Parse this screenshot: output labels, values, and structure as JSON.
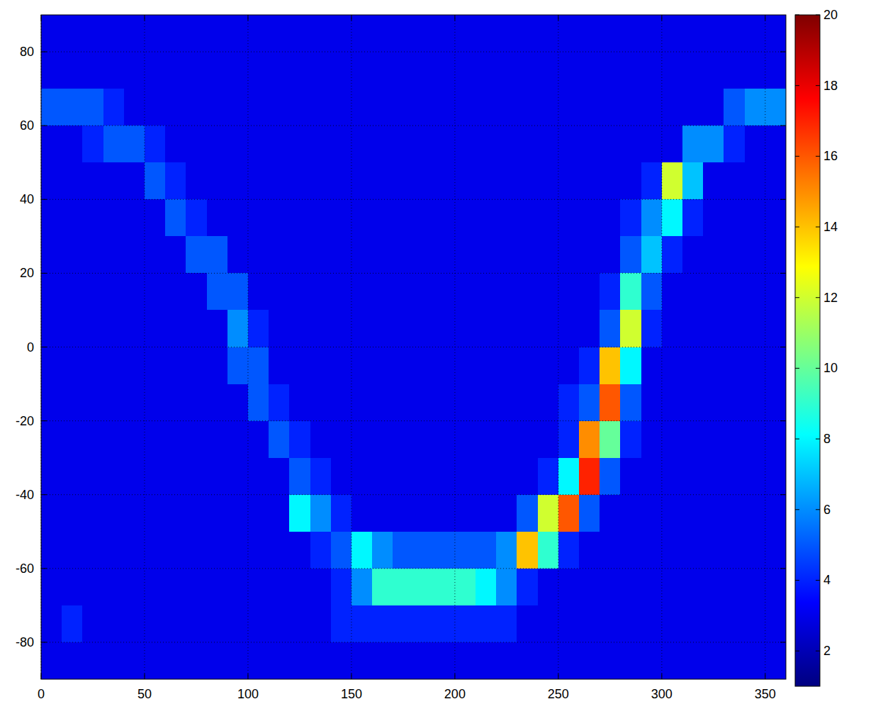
{
  "chart_data": {
    "type": "heatmap",
    "x": [
      5,
      15,
      25,
      35,
      45,
      55,
      65,
      75,
      85,
      95,
      105,
      115,
      125,
      135,
      145,
      155,
      165,
      175,
      185,
      195,
      205,
      215,
      225,
      235,
      245,
      255,
      265,
      275,
      285,
      295,
      305,
      315,
      325,
      335,
      345,
      355
    ],
    "y": [
      85,
      75,
      65,
      55,
      45,
      35,
      25,
      15,
      5,
      -5,
      -15,
      -25,
      -35,
      -45,
      -55,
      -65,
      -75,
      -85
    ],
    "values": [
      [
        3,
        3,
        3,
        3,
        3,
        3,
        3,
        3,
        3,
        3,
        3,
        3,
        3,
        3,
        3,
        3,
        3,
        3,
        3,
        3,
        3,
        3,
        3,
        3,
        3,
        3,
        3,
        3,
        3,
        3,
        3,
        3,
        3,
        3,
        3,
        3
      ],
      [
        3,
        3,
        3,
        3,
        3,
        3,
        3,
        3,
        3,
        3,
        3,
        3,
        3,
        3,
        3,
        3,
        3,
        3,
        3,
        3,
        3,
        3,
        3,
        3,
        3,
        3,
        3,
        3,
        3,
        3,
        3,
        3,
        3,
        3,
        3,
        3
      ],
      [
        5,
        5,
        5,
        4,
        3,
        3,
        3,
        3,
        3,
        3,
        3,
        3,
        3,
        3,
        3,
        3,
        3,
        3,
        3,
        3,
        3,
        3,
        3,
        3,
        3,
        3,
        3,
        3,
        3,
        3,
        3,
        3,
        3,
        5,
        6,
        6
      ],
      [
        3,
        3,
        4,
        5,
        5,
        4,
        3,
        3,
        3,
        3,
        3,
        3,
        3,
        3,
        3,
        3,
        3,
        3,
        3,
        3,
        3,
        3,
        3,
        3,
        3,
        3,
        3,
        3,
        3,
        3,
        3,
        6,
        6,
        4,
        3,
        3
      ],
      [
        3,
        3,
        3,
        3,
        3,
        5,
        4,
        3,
        3,
        3,
        3,
        3,
        3,
        3,
        3,
        3,
        3,
        3,
        3,
        3,
        3,
        3,
        3,
        3,
        3,
        3,
        3,
        3,
        3,
        4,
        12,
        7,
        3,
        3,
        3,
        3
      ],
      [
        3,
        3,
        3,
        3,
        3,
        3,
        5,
        4,
        3,
        3,
        3,
        3,
        3,
        3,
        3,
        3,
        3,
        3,
        3,
        3,
        3,
        3,
        3,
        3,
        3,
        3,
        3,
        3,
        4,
        6,
        8,
        4,
        3,
        3,
        3,
        3
      ],
      [
        3,
        3,
        3,
        3,
        3,
        3,
        3,
        5,
        5,
        3,
        3,
        3,
        3,
        3,
        3,
        3,
        3,
        3,
        3,
        3,
        3,
        3,
        3,
        3,
        3,
        3,
        3,
        3,
        5,
        7,
        4,
        3,
        3,
        3,
        3,
        3
      ],
      [
        3,
        3,
        3,
        3,
        3,
        3,
        3,
        3,
        5,
        5,
        3,
        3,
        3,
        3,
        3,
        3,
        3,
        3,
        3,
        3,
        3,
        3,
        3,
        3,
        3,
        3,
        3,
        4,
        9,
        5,
        3,
        3,
        3,
        3,
        3,
        3
      ],
      [
        3,
        3,
        3,
        3,
        3,
        3,
        3,
        3,
        3,
        6,
        4,
        3,
        3,
        3,
        3,
        3,
        3,
        3,
        3,
        3,
        3,
        3,
        3,
        3,
        3,
        3,
        3,
        5,
        12,
        4,
        3,
        3,
        3,
        3,
        3,
        3
      ],
      [
        3,
        3,
        3,
        3,
        3,
        3,
        3,
        3,
        3,
        5,
        5,
        3,
        3,
        3,
        3,
        3,
        3,
        3,
        3,
        3,
        3,
        3,
        3,
        3,
        3,
        3,
        4,
        14,
        8,
        3,
        3,
        3,
        3,
        3,
        3,
        3
      ],
      [
        3,
        3,
        3,
        3,
        3,
        3,
        3,
        3,
        3,
        3,
        5,
        4,
        3,
        3,
        3,
        3,
        3,
        3,
        3,
        3,
        3,
        3,
        3,
        3,
        3,
        4,
        5,
        16,
        5,
        3,
        3,
        3,
        3,
        3,
        3,
        3
      ],
      [
        3,
        3,
        3,
        3,
        3,
        3,
        3,
        3,
        3,
        3,
        3,
        5,
        4,
        3,
        3,
        3,
        3,
        3,
        3,
        3,
        3,
        3,
        3,
        3,
        3,
        4,
        15,
        10,
        4,
        3,
        3,
        3,
        3,
        3,
        3,
        3
      ],
      [
        3,
        3,
        3,
        3,
        3,
        3,
        3,
        3,
        3,
        3,
        3,
        3,
        5,
        4,
        3,
        3,
        3,
        3,
        3,
        3,
        3,
        3,
        3,
        3,
        4,
        8,
        17,
        5,
        3,
        3,
        3,
        3,
        3,
        3,
        3,
        3
      ],
      [
        3,
        3,
        3,
        3,
        3,
        3,
        3,
        3,
        3,
        3,
        3,
        3,
        8,
        6,
        4,
        3,
        3,
        3,
        3,
        3,
        3,
        3,
        3,
        5,
        12,
        16,
        5,
        3,
        3,
        3,
        3,
        3,
        3,
        3,
        3,
        3
      ],
      [
        3,
        3,
        3,
        3,
        3,
        3,
        3,
        3,
        3,
        3,
        3,
        3,
        3,
        4,
        5,
        8,
        6,
        5,
        5,
        5,
        5,
        5,
        6,
        14,
        9,
        4,
        3,
        3,
        3,
        3,
        3,
        3,
        3,
        3,
        3,
        3
      ],
      [
        3,
        3,
        3,
        3,
        3,
        3,
        3,
        3,
        3,
        3,
        3,
        3,
        3,
        3,
        4,
        6,
        9,
        9,
        9,
        9,
        9,
        8,
        6,
        4,
        3,
        3,
        3,
        3,
        3,
        3,
        3,
        3,
        3,
        3,
        3,
        3
      ],
      [
        3,
        4,
        3,
        3,
        3,
        3,
        3,
        3,
        3,
        3,
        3,
        3,
        3,
        3,
        4,
        4,
        4,
        4,
        4,
        4,
        4,
        4,
        4,
        3,
        3,
        3,
        3,
        3,
        3,
        3,
        3,
        3,
        3,
        3,
        3,
        3
      ],
      [
        3,
        3,
        3,
        3,
        3,
        3,
        3,
        3,
        3,
        3,
        3,
        3,
        3,
        3,
        3,
        3,
        3,
        3,
        3,
        3,
        3,
        3,
        3,
        3,
        3,
        3,
        3,
        3,
        3,
        3,
        3,
        3,
        3,
        3,
        3,
        3
      ]
    ],
    "xlim": [
      0,
      360
    ],
    "xticks": [
      0,
      50,
      100,
      150,
      200,
      250,
      300,
      350
    ],
    "ylim": [
      -90,
      90
    ],
    "yticks": [
      -80,
      -60,
      -40,
      -20,
      0,
      20,
      40,
      60,
      80
    ],
    "grid": true,
    "colorbar": {
      "range": [
        1,
        20
      ],
      "ticks": [
        2,
        4,
        6,
        8,
        10,
        12,
        14,
        16,
        18,
        20
      ]
    }
  }
}
